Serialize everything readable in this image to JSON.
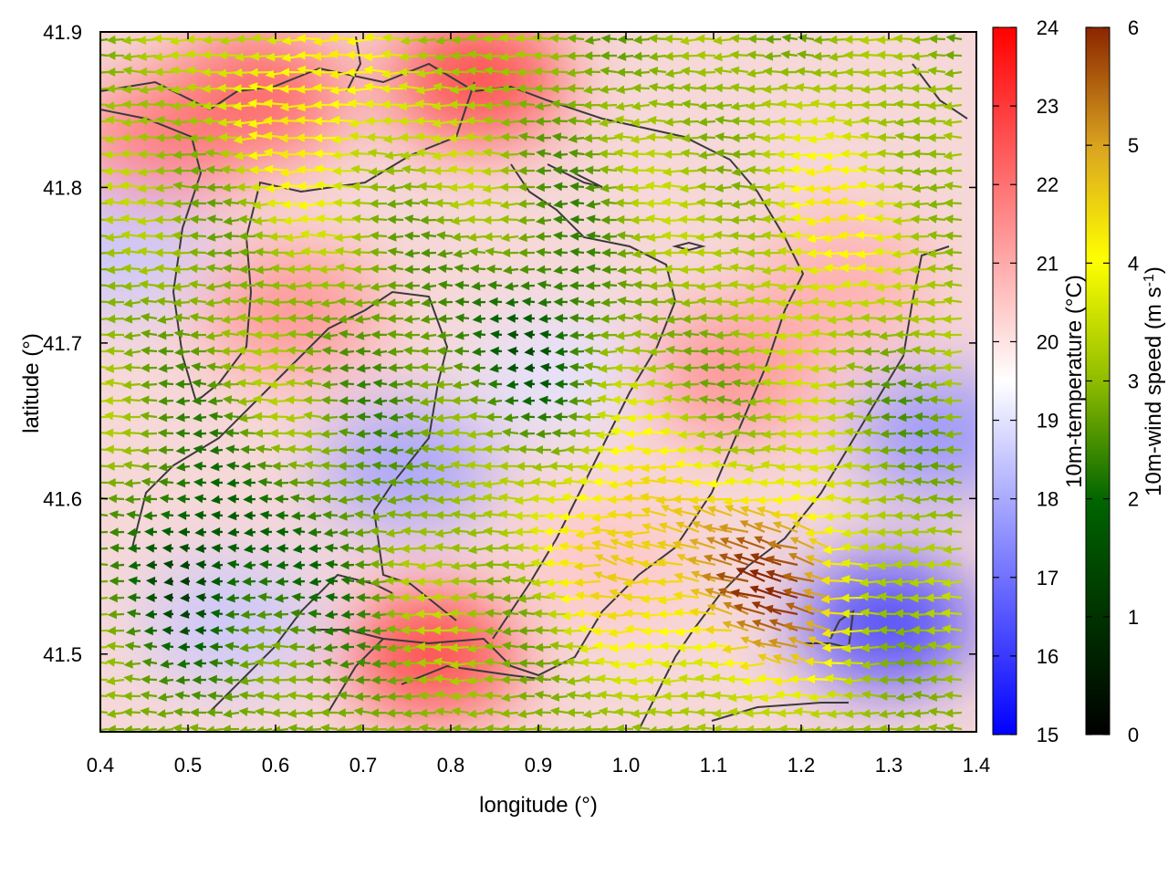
{
  "chart_data": {
    "type": "heatmap",
    "title": "",
    "xlabel": "longitude (°)",
    "ylabel": "latitude (°)",
    "xlim": [
      0.4,
      1.4
    ],
    "ylim": [
      41.45,
      41.9
    ],
    "xticks": [
      "0.4",
      "0.5",
      "0.6",
      "0.7",
      "0.8",
      "0.9",
      "1.0",
      "1.1",
      "1.2",
      "1.3",
      "1.4"
    ],
    "yticks": [
      "41.5",
      "41.6",
      "41.7",
      "41.8",
      "41.9"
    ],
    "ytick_values": [
      41.5,
      41.6,
      41.7,
      41.8,
      41.9
    ],
    "temperature_colorbar": {
      "label": "10m-temperature (°C)",
      "range": [
        15,
        24
      ],
      "ticks": [
        "15",
        "16",
        "17",
        "18",
        "19",
        "20",
        "21",
        "22",
        "23",
        "24"
      ],
      "colors": [
        "#0000ff",
        "#ffffff",
        "#ff0000"
      ]
    },
    "wind_colorbar": {
      "label": "10m-wind speed (m s-1)",
      "label_main": "10m-wind speed (m s",
      "label_sup": "-1",
      "label_end": ")",
      "range": [
        0,
        6
      ],
      "ticks": [
        "0",
        "1",
        "2",
        "3",
        "4",
        "5",
        "6"
      ],
      "colors": [
        "#000000",
        "#006400",
        "#8fbc00",
        "#ffff00",
        "#daa520",
        "#8b2500"
      ]
    },
    "temperature_regions": [
      {
        "lon": 0.58,
        "lat": 41.86,
        "temp": 22.5
      },
      {
        "lon": 0.83,
        "lat": 41.87,
        "temp": 23.0
      },
      {
        "lon": 0.47,
        "lat": 41.83,
        "temp": 22.0
      },
      {
        "lon": 0.62,
        "lat": 41.72,
        "temp": 21.5
      },
      {
        "lon": 0.78,
        "lat": 41.5,
        "temp": 23.0
      },
      {
        "lon": 1.12,
        "lat": 41.68,
        "temp": 21.5
      },
      {
        "lon": 1.25,
        "lat": 41.74,
        "temp": 21.0
      },
      {
        "lon": 0.75,
        "lat": 41.62,
        "temp": 17.8
      },
      {
        "lon": 1.3,
        "lat": 41.52,
        "temp": 16.0
      },
      {
        "lon": 0.55,
        "lat": 41.52,
        "temp": 18.5
      },
      {
        "lon": 0.92,
        "lat": 41.68,
        "temp": 19.0
      },
      {
        "lon": 0.42,
        "lat": 41.76,
        "temp": 18.5
      },
      {
        "lon": 1.36,
        "lat": 41.64,
        "temp": 17.5
      },
      {
        "lon": 0.98,
        "lat": 41.56,
        "temp": 20.5
      }
    ],
    "wind": {
      "mean_direction": "from east (westward arrows)",
      "strong_zone": {
        "lon": 1.18,
        "lat": 41.54,
        "speed": 5.2
      },
      "moderate_zones": [
        {
          "lon": 1.02,
          "lat": 41.58,
          "speed": 4.0
        },
        {
          "lon": 0.66,
          "lat": 41.86,
          "speed": 3.8
        },
        {
          "lon": 1.25,
          "lat": 41.78,
          "speed": 3.4
        }
      ],
      "calm_zones": [
        {
          "lon": 0.88,
          "lat": 41.7,
          "speed": 1.2
        },
        {
          "lon": 0.55,
          "lat": 41.56,
          "speed": 0.8
        }
      ]
    }
  }
}
